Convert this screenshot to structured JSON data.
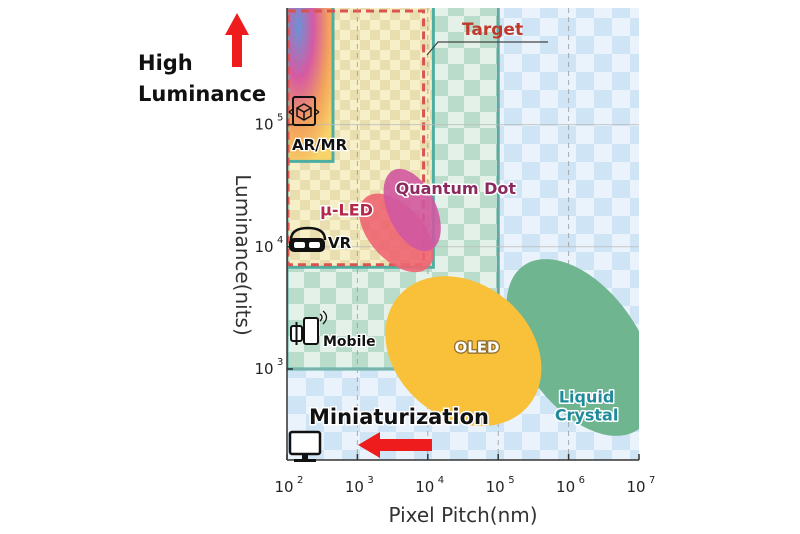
{
  "chart_data": {
    "type": "scatter",
    "title": "",
    "xlabel": "Pixel Pitch(nm)",
    "ylabel": "Luminance(nits)",
    "xscale": "log",
    "yscale": "log",
    "xlim": [
      100,
      10000000
    ],
    "ylim": [
      180,
      900000
    ],
    "x_ticks": [
      {
        "value": 100,
        "base": "10",
        "exp": "2"
      },
      {
        "value": 1000,
        "base": "10",
        "exp": "3"
      },
      {
        "value": 10000,
        "base": "10",
        "exp": "4"
      },
      {
        "value": 100000,
        "base": "10",
        "exp": "5"
      },
      {
        "value": 1000000,
        "base": "10",
        "exp": "6"
      },
      {
        "value": 10000000,
        "base": "10",
        "exp": "7"
      }
    ],
    "y_ticks": [
      {
        "value": 1000,
        "base": "10",
        "exp": "3"
      },
      {
        "value": 10000,
        "base": "10",
        "exp": "4"
      },
      {
        "value": 100000,
        "base": "10",
        "exp": "5"
      }
    ],
    "technologies": [
      {
        "label": "Liquid Crystal",
        "lines": [
          "Liquid",
          "Crystal"
        ],
        "color": "#6fb590",
        "label_color": "#1f8a9a",
        "center": [
          1500000,
          1500
        ],
        "label_at": [
          1800000,
          500
        ]
      },
      {
        "label": "OLED",
        "lines": [
          "OLED"
        ],
        "color": "#f9c03a",
        "label_color": "#ffffff",
        "center": [
          32000,
          1400
        ],
        "label_at": [
          50000,
          1500
        ]
      },
      {
        "label": "μ-LED",
        "lines": [
          "μ-LED"
        ],
        "color": "#ee6471",
        "label_color": "#b2294a",
        "center": [
          3600,
          13000
        ],
        "label_at": [
          700,
          20000
        ]
      },
      {
        "label": "Quantum Dot",
        "lines": [
          "Quantum Dot"
        ],
        "color": "#cf58a0",
        "label_color": "#8a2a5f",
        "center": [
          6000,
          20000
        ],
        "label_at": [
          25000,
          30000
        ]
      }
    ],
    "application_regions": [
      {
        "label": "AR/MR",
        "x_range": [
          100,
          450
        ],
        "y_range": [
          50000,
          900000
        ]
      },
      {
        "label": "VR",
        "x_range": [
          100,
          12000
        ],
        "y_range": [
          6800,
          900000
        ]
      },
      {
        "label": "Mobile",
        "x_range": [
          100,
          100000
        ],
        "y_range": [
          1000,
          900000
        ]
      },
      {
        "label": "Target",
        "x_range": [
          100,
          9000
        ],
        "y_range": [
          7000,
          900000
        ]
      }
    ],
    "region_labels": {
      "ar": "AR/MR",
      "vr": "VR",
      "mobile": "Mobile",
      "target": "Target"
    },
    "annotations": {
      "high_luminance_1": "High",
      "high_luminance_2": "Luminance",
      "miniaturization": "Miniaturization"
    },
    "colors": {
      "target_border": "#d9534f",
      "target_text": "#c0392b",
      "region_border": "#4faea2",
      "arrow": "#ee1c1c",
      "axis": "#333333",
      "checker_green": "#b9dccb",
      "checker_blue": "#cfe4f4"
    },
    "icons": [
      "display-icon",
      "watch-phone-icon",
      "vr-headset-icon",
      "ar-cube-icon"
    ]
  }
}
